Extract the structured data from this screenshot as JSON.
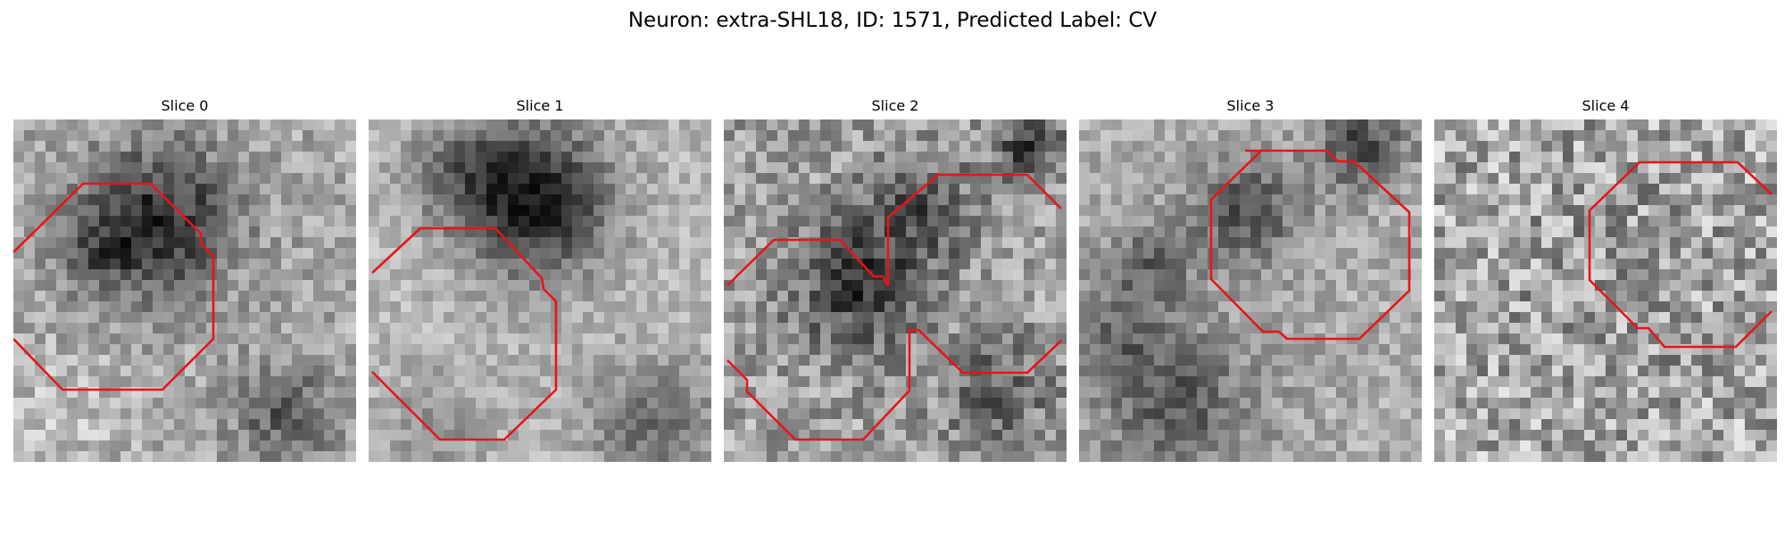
{
  "title": "Neuron: extra-SHL18, ID: 1571, Predicted Label: CV",
  "contour_color": "#e8141a",
  "colormap": "grayscale",
  "slices": [
    {
      "label": "Slice 0"
    },
    {
      "label": "Slice 1"
    },
    {
      "label": "Slice 2"
    },
    {
      "label": "Slice 3"
    },
    {
      "label": "Slice 4"
    }
  ]
}
